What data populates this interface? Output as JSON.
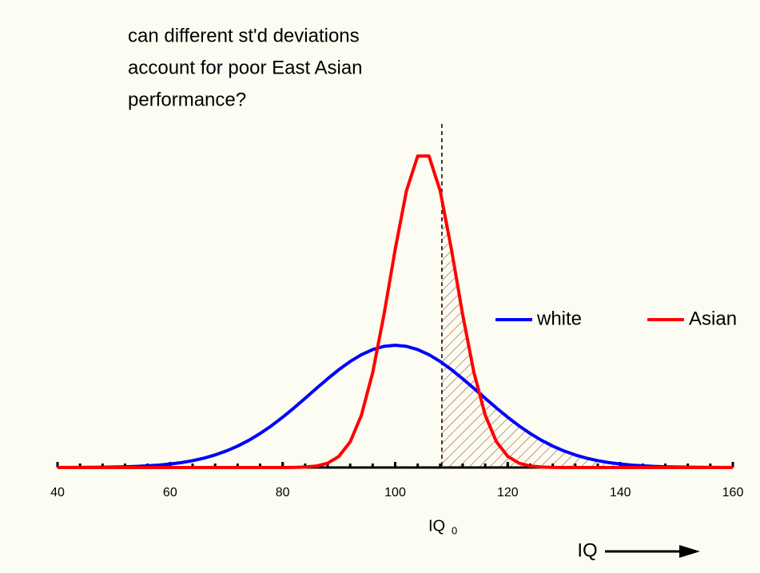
{
  "chart_data": {
    "type": "line",
    "title": [
      "can different st'd deviations",
      "account for poor East Asian",
      "performance?"
    ],
    "x": [
      40,
      42,
      44,
      46,
      48,
      50,
      52,
      54,
      56,
      58,
      60,
      62,
      64,
      66,
      68,
      70,
      72,
      74,
      76,
      78,
      80,
      82,
      84,
      86,
      88,
      90,
      92,
      94,
      96,
      98,
      100,
      102,
      104,
      106,
      108,
      110,
      112,
      114,
      116,
      118,
      120,
      122,
      124,
      126,
      128,
      130,
      132,
      134,
      136,
      138,
      140,
      142,
      144,
      146,
      148,
      150,
      152,
      154,
      156,
      158,
      160
    ],
    "series": [
      {
        "name": "white",
        "color": "#0000ff",
        "values": [
          1e-05,
          2e-05,
          3e-05,
          4e-05,
          7e-05,
          0.0001,
          0.00016,
          0.00024,
          0.00036,
          0.00053,
          0.00076,
          0.00107,
          0.00149,
          0.00204,
          0.00273,
          0.0036,
          0.00466,
          0.00592,
          0.0074,
          0.00907,
          0.01094,
          0.01295,
          0.01506,
          0.01721,
          0.01931,
          0.0213,
          0.02307,
          0.02456,
          0.02567,
          0.02637,
          0.0266,
          0.02637,
          0.02567,
          0.02456,
          0.02307,
          0.0213,
          0.01931,
          0.01721,
          0.01506,
          0.01295,
          0.01094,
          0.00907,
          0.0074,
          0.00592,
          0.00466,
          0.0036,
          0.00273,
          0.00204,
          0.00149,
          0.00107,
          0.00076,
          0.00053,
          0.00036,
          0.00024,
          0.00016,
          0.0001,
          7e-05,
          4e-05,
          3e-05,
          2e-05,
          1e-05
        ]
      },
      {
        "name": "Asian",
        "color": "#ff0000",
        "values": [
          0,
          0,
          0,
          0,
          0,
          0,
          0,
          0,
          0,
          0,
          0,
          0,
          0,
          0,
          0,
          0,
          0,
          0,
          0,
          0,
          1e-05,
          3e-05,
          0.0001,
          0.00032,
          0.00094,
          0.00243,
          0.00558,
          0.01139,
          0.02064,
          0.03321,
          0.04745,
          0.06019,
          0.06778,
          0.06778,
          0.06019,
          0.04745,
          0.03321,
          0.02064,
          0.01139,
          0.00558,
          0.00243,
          0.00094,
          0.00032,
          0.0001,
          3e-05,
          1e-05,
          0,
          0,
          0,
          0,
          0,
          0,
          0,
          0,
          0,
          0,
          0,
          0,
          0,
          0,
          0
        ]
      }
    ],
    "xlim": [
      40,
      160
    ],
    "xticks": [
      40,
      60,
      80,
      100,
      120,
      140,
      160
    ],
    "minor_xticks": [
      40,
      44,
      48,
      52,
      56,
      60,
      64,
      68,
      72,
      76,
      80,
      84,
      88,
      92,
      96,
      100,
      104,
      108,
      112,
      116,
      120,
      124,
      128,
      132,
      136,
      140,
      144,
      148,
      152,
      156,
      160
    ],
    "ylim": [
      0,
      0.08
    ],
    "threshold": {
      "x": 108.3,
      "label": "IQ",
      "subscript": "0"
    },
    "xlabel": "IQ"
  }
}
